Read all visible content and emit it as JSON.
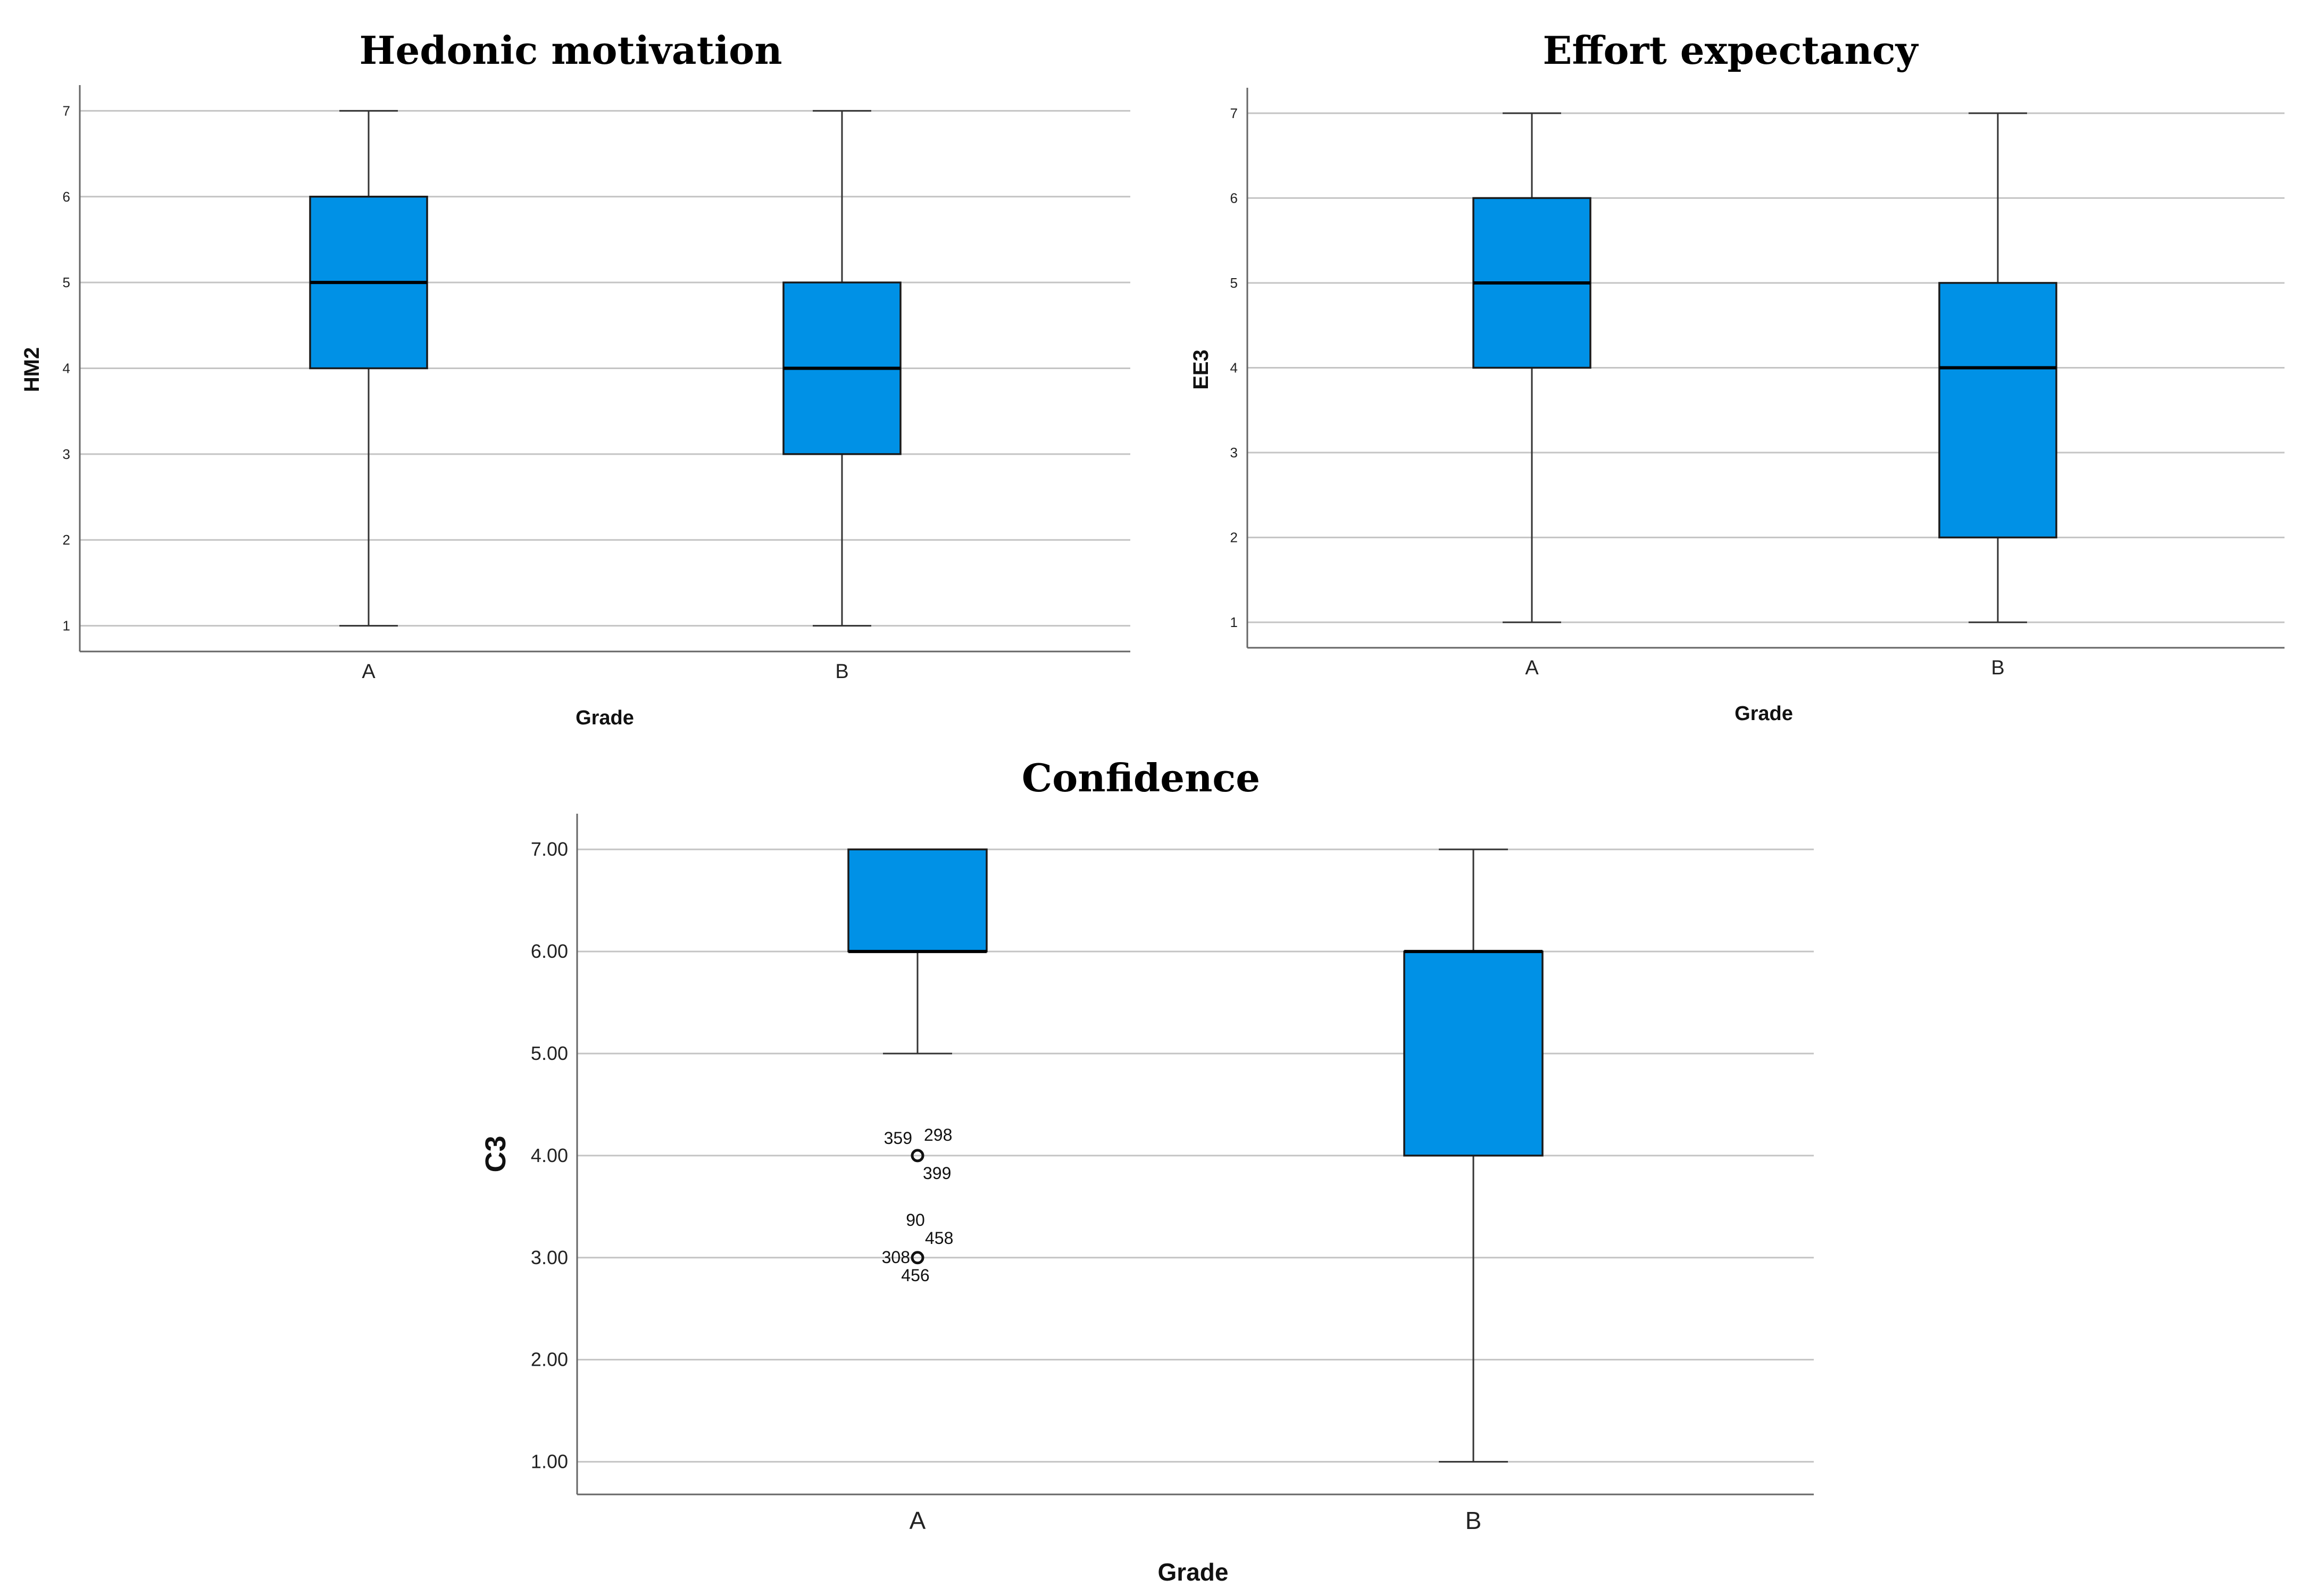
{
  "colors": {
    "box_fill": "#0091e6",
    "box_stroke": "#1a1a1a",
    "grid": "#c4c4c4",
    "axis": "#666666"
  },
  "chart_data": [
    {
      "type": "boxplot",
      "title": "Hedonic motivation",
      "xlabel": "Grade",
      "ylabel": "HM2",
      "ylim": [
        0.7,
        7.3
      ],
      "yticks": [
        1,
        2,
        3,
        4,
        5,
        6,
        7
      ],
      "ytick_labels": [
        "1",
        "2",
        "3",
        "4",
        "5",
        "6",
        "7"
      ],
      "categories": [
        "A",
        "B"
      ],
      "boxes": [
        {
          "category": "A",
          "whisker_low": 1,
          "q1": 4,
          "median": 5,
          "q3": 6,
          "whisker_high": 7
        },
        {
          "category": "B",
          "whisker_low": 1,
          "q1": 3,
          "median": 4,
          "q3": 5,
          "whisker_high": 7
        }
      ],
      "outliers": []
    },
    {
      "type": "boxplot",
      "title": "Effort expectancy",
      "xlabel": "Grade",
      "ylabel": "EE3",
      "ylim": [
        0.7,
        7.3
      ],
      "yticks": [
        1,
        2,
        3,
        4,
        5,
        6,
        7
      ],
      "ytick_labels": [
        "1",
        "2",
        "3",
        "4",
        "5",
        "6",
        "7"
      ],
      "categories": [
        "A",
        "B"
      ],
      "boxes": [
        {
          "category": "A",
          "whisker_low": 1,
          "q1": 4,
          "median": 5,
          "q3": 6,
          "whisker_high": 7
        },
        {
          "category": "B",
          "whisker_low": 1,
          "q1": 2,
          "median": 4,
          "q3": 5,
          "whisker_high": 7
        }
      ],
      "outliers": []
    },
    {
      "type": "boxplot",
      "title": "Confidence",
      "xlabel": "Grade",
      "ylabel": "C3",
      "ylim": [
        0.68,
        7.35
      ],
      "yticks": [
        1,
        2,
        3,
        4,
        5,
        6,
        7
      ],
      "ytick_labels": [
        "1.00",
        "2.00",
        "3.00",
        "4.00",
        "5.00",
        "6.00",
        "7.00"
      ],
      "categories": [
        "A",
        "B"
      ],
      "boxes": [
        {
          "category": "A",
          "whisker_low": 5,
          "q1": 6,
          "median": 6,
          "q3": 7,
          "whisker_high": 7
        },
        {
          "category": "B",
          "whisker_low": 1,
          "q1": 4,
          "median": 6,
          "q3": 6,
          "whisker_high": 7
        }
      ],
      "outliers": [
        {
          "category": "A",
          "value": 4,
          "labels": [
            "359",
            "298",
            "399"
          ]
        },
        {
          "category": "A",
          "value": 3,
          "labels": [
            "90",
            "458",
            "308",
            "456"
          ]
        }
      ]
    }
  ]
}
